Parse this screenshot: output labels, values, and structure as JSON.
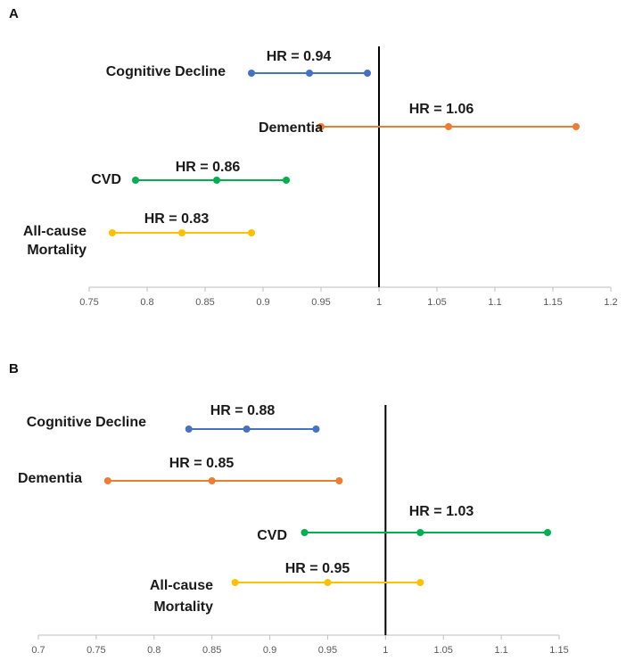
{
  "chart_data": [
    {
      "type": "forest",
      "panel": "A",
      "x_ticks": [
        "0.75",
        "0.8",
        "0.85",
        "0.9",
        "0.95",
        "1",
        "1.05",
        "1.1",
        "1.15",
        "1.2"
      ],
      "xlim": [
        0.75,
        1.2
      ],
      "reference_line": 1,
      "series": [
        {
          "name": "Cognitive Decline",
          "hr_label": "HR = 0.94",
          "lower": 0.89,
          "estimate": 0.94,
          "upper": 0.99,
          "color": "#4472C4"
        },
        {
          "name": "Dementia",
          "hr_label": "HR = 1.06",
          "lower": 0.95,
          "estimate": 1.06,
          "upper": 1.17,
          "color": "#ED7D31"
        },
        {
          "name": "CVD",
          "hr_label": "HR = 0.86",
          "lower": 0.79,
          "estimate": 0.86,
          "upper": 0.92,
          "color": "#00B050"
        },
        {
          "name": "All-cause Mortality",
          "name_lines": [
            "All-cause",
            "Mortality"
          ],
          "hr_label": "HR = 0.83",
          "lower": 0.77,
          "estimate": 0.83,
          "upper": 0.89,
          "color": "#FFC000"
        }
      ]
    },
    {
      "type": "forest",
      "panel": "B",
      "x_ticks": [
        "0.7",
        "0.75",
        "0.8",
        "0.85",
        "0.9",
        "0.95",
        "1",
        "1.05",
        "1.1",
        "1.15"
      ],
      "xlim": [
        0.7,
        1.15
      ],
      "reference_line": 1,
      "series": [
        {
          "name": "Cognitive Decline",
          "hr_label": "HR = 0.88",
          "lower": 0.83,
          "estimate": 0.88,
          "upper": 0.94,
          "color": "#4472C4"
        },
        {
          "name": "Dementia",
          "hr_label": "HR = 0.85",
          "lower": 0.76,
          "estimate": 0.85,
          "upper": 0.96,
          "color": "#ED7D31"
        },
        {
          "name": "CVD",
          "hr_label": "HR = 1.03",
          "lower": 0.93,
          "estimate": 1.03,
          "upper": 1.14,
          "color": "#00B050"
        },
        {
          "name": "All-cause Mortality",
          "name_lines": [
            "All-cause",
            "Mortality"
          ],
          "hr_label": "HR = 0.95",
          "lower": 0.87,
          "estimate": 0.95,
          "upper": 1.03,
          "color": "#FFC000"
        }
      ]
    }
  ]
}
